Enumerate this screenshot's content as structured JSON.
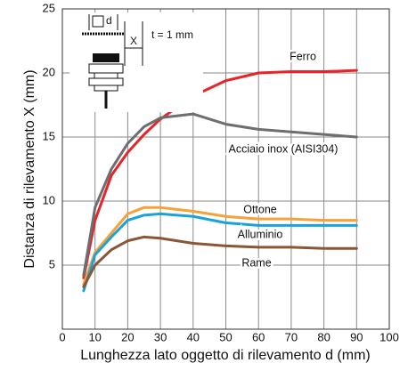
{
  "chart_data": {
    "type": "line",
    "xlabel": "Lunghezza lato oggetto di rilevamento d (mm)",
    "ylabel": "Distanza di rilevamento X (mm)",
    "annotations": [
      "d",
      "t = 1 mm",
      "X"
    ],
    "x": [
      6.5,
      10,
      15,
      20,
      25,
      30,
      40,
      50,
      60,
      70,
      80,
      90
    ],
    "series": [
      {
        "name": "Ferro",
        "color": "#e8242a",
        "values": [
          4,
          8.5,
          12,
          13.8,
          15.2,
          16.4,
          18.2,
          19.4,
          20,
          20.1,
          20.1,
          20.2
        ]
      },
      {
        "name": "Acciaio inox (AISI304)",
        "color": "#6d6e71",
        "values": [
          4.2,
          9.5,
          12.5,
          14.5,
          15.8,
          16.5,
          16.8,
          16,
          15.6,
          15.4,
          15.2,
          15
        ]
      },
      {
        "name": "Ottone",
        "color": "#f7a13a",
        "values": [
          3.5,
          6,
          7.5,
          9,
          9.5,
          9.5,
          9.2,
          8.8,
          8.6,
          8.6,
          8.5,
          8.5
        ]
      },
      {
        "name": "Alluminio",
        "color": "#1ba3d8",
        "values": [
          3,
          5.8,
          7.2,
          8.5,
          8.9,
          9,
          8.8,
          8.3,
          8.1,
          8.1,
          8.1,
          8.1
        ]
      },
      {
        "name": "Rame",
        "color": "#8b5637",
        "values": [
          3.3,
          5,
          6.2,
          6.9,
          7.2,
          7.1,
          6.7,
          6.5,
          6.4,
          6.4,
          6.3,
          6.3
        ]
      }
    ],
    "xlim": [
      0,
      100
    ],
    "xticks": [
      0,
      10,
      20,
      30,
      40,
      50,
      60,
      70,
      80,
      90,
      100
    ],
    "ylim": [
      0,
      25
    ],
    "yticks": [
      5,
      10,
      15,
      20,
      25
    ],
    "grid": true
  }
}
